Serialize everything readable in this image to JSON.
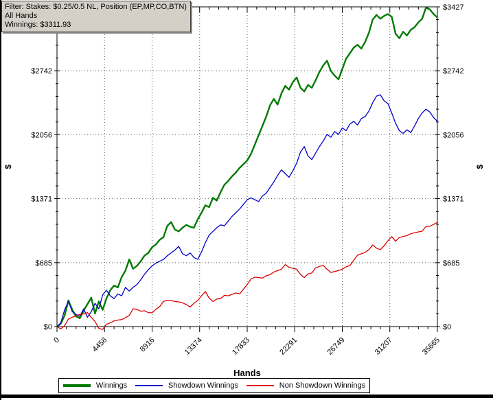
{
  "window": {
    "tooltip": {
      "line1": "Filter: Stakes: $0.25/0.5 NL, Position (EP,MP,CO,BTN)",
      "line2": "All Hands",
      "line3": "Winnings: $3311.93"
    }
  },
  "chart_data": {
    "type": "line",
    "title": "",
    "xlabel": "Hands",
    "ylabel": "$",
    "xlim": [
      0,
      35665
    ],
    "ylim": [
      0,
      3427
    ],
    "x_ticks": [
      0,
      4458,
      8916,
      13374,
      17833,
      22291,
      26749,
      31207,
      35665
    ],
    "y_ticks": [
      0,
      685,
      1371,
      2056,
      2742,
      3427
    ],
    "x_tick_prefix": "",
    "y_tick_prefix": "$",
    "x_minor_divisions": 5,
    "y_minor_divisions": 5,
    "grid": "dotted",
    "legend_position": "bottom",
    "x_start": 0,
    "x_step": 356.65,
    "final_winnings": 3311.93,
    "series": [
      {
        "name": "Winnings",
        "color": "#007a00",
        "width": 2.4,
        "values": [
          0,
          30,
          120,
          280,
          180,
          110,
          90,
          170,
          240,
          310,
          140,
          270,
          180,
          300,
          390,
          440,
          420,
          530,
          600,
          720,
          620,
          650,
          700,
          760,
          790,
          850,
          880,
          930,
          960,
          1080,
          1120,
          1040,
          1020,
          1060,
          1090,
          1070,
          1060,
          1150,
          1220,
          1300,
          1280,
          1380,
          1350,
          1440,
          1520,
          1560,
          1610,
          1650,
          1700,
          1740,
          1780,
          1850,
          1950,
          2050,
          2150,
          2250,
          2370,
          2440,
          2380,
          2500,
          2580,
          2540,
          2620,
          2670,
          2560,
          2520,
          2590,
          2560,
          2640,
          2730,
          2800,
          2850,
          2740,
          2690,
          2650,
          2760,
          2870,
          2930,
          2990,
          3020,
          2980,
          3050,
          3150,
          3290,
          3340,
          3300,
          3330,
          3350,
          3320,
          3140,
          3090,
          3160,
          3120,
          3180,
          3210,
          3260,
          3300,
          3420,
          3400,
          3350,
          3312
        ]
      },
      {
        "name": "Showdown Winnings",
        "color": "#0000cd",
        "width": 1.3,
        "values": [
          0,
          40,
          180,
          270,
          160,
          130,
          110,
          190,
          100,
          160,
          250,
          190,
          340,
          390,
          330,
          300,
          350,
          330,
          420,
          380,
          420,
          450,
          500,
          560,
          610,
          650,
          680,
          700,
          720,
          760,
          790,
          820,
          860,
          780,
          760,
          790,
          740,
          720,
          800,
          900,
          980,
          1020,
          1060,
          1090,
          1080,
          1130,
          1180,
          1220,
          1260,
          1310,
          1360,
          1380,
          1360,
          1340,
          1400,
          1430,
          1490,
          1550,
          1620,
          1680,
          1640,
          1600,
          1670,
          1750,
          1870,
          1930,
          1830,
          1790,
          1860,
          1930,
          1990,
          2060,
          2030,
          2090,
          2060,
          2130,
          2100,
          2170,
          2200,
          2160,
          2230,
          2250,
          2310,
          2400,
          2470,
          2485,
          2420,
          2390,
          2290,
          2180,
          2100,
          2070,
          2110,
          2080,
          2150,
          2230,
          2290,
          2330,
          2300,
          2240,
          2200
        ]
      },
      {
        "name": "Non Showdown Winnings",
        "color": "#dc0000",
        "width": 1.3,
        "values": [
          0,
          -25,
          10,
          80,
          100,
          115,
          130,
          135,
          150,
          100,
          55,
          -20,
          -30,
          25,
          40,
          60,
          70,
          75,
          95,
          120,
          190,
          185,
          165,
          170,
          150,
          148,
          185,
          215,
          270,
          280,
          278,
          270,
          265,
          255,
          235,
          210,
          250,
          280,
          330,
          375,
          305,
          270,
          295,
          300,
          335,
          330,
          345,
          360,
          350,
          400,
          450,
          510,
          530,
          525,
          520,
          545,
          555,
          585,
          600,
          615,
          665,
          635,
          625,
          615,
          560,
          525,
          565,
          575,
          630,
          645,
          655,
          615,
          580,
          590,
          600,
          615,
          640,
          655,
          710,
          765,
          780,
          795,
          825,
          875,
          840,
          825,
          865,
          920,
          965,
          915,
          955,
          965,
          975,
          995,
          1005,
          1015,
          1022,
          1073,
          1075,
          1095,
          1117
        ]
      }
    ]
  }
}
